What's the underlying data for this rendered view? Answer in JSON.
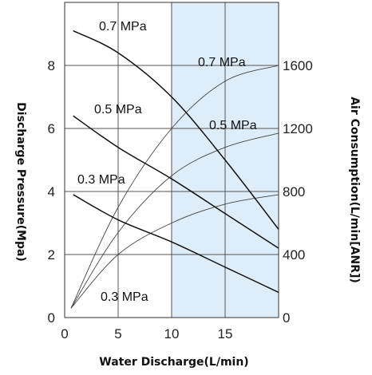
{
  "chart_data": {
    "type": "line",
    "xlabel": "Water Discharge(L/min)",
    "ylabel": "Discharge Pressure(Mpa)",
    "y2label": "Air Consumption(L/min[ANR])",
    "xlim": [
      0,
      20
    ],
    "ylim": [
      0,
      10
    ],
    "y2lim": [
      0,
      2000
    ],
    "x_ticks": [
      "0",
      "5",
      "10",
      "15"
    ],
    "y_ticks": [
      "0",
      "2",
      "4",
      "6",
      "8"
    ],
    "y2_ticks": [
      "0",
      "400",
      "800",
      "1200",
      "1600"
    ],
    "highlight_region": {
      "x_from": 10,
      "x_to": 20,
      "color": "#ddeefa"
    },
    "grid": true,
    "discharge_pressure_series": [
      {
        "name": "0.7 MPa",
        "x": [
          0,
          5,
          10,
          15,
          20
        ],
        "y": [
          9.1,
          8.4,
          7.0,
          5.0,
          2.8
        ]
      },
      {
        "name": "0.5 MPa",
        "x": [
          0,
          5,
          10,
          15,
          20
        ],
        "y": [
          6.4,
          5.4,
          4.4,
          3.3,
          2.2
        ]
      },
      {
        "name": "0.3 MPa",
        "x": [
          0,
          5,
          10,
          15,
          20
        ],
        "y": [
          3.9,
          3.1,
          2.4,
          1.6,
          0.8
        ]
      }
    ],
    "air_consumption_series": [
      {
        "name": "0.7 MPa",
        "x": [
          0,
          5,
          10,
          15,
          20
        ],
        "y": [
          60,
          700,
          1200,
          1500,
          1600
        ]
      },
      {
        "name": "0.5 MPa",
        "x": [
          0,
          5,
          10,
          15,
          20
        ],
        "y": [
          60,
          540,
          900,
          1080,
          1170
        ]
      },
      {
        "name": "0.3 MPa",
        "x": [
          0,
          5,
          10,
          15,
          20
        ],
        "y": [
          60,
          400,
          600,
          720,
          780
        ]
      }
    ],
    "labels": {
      "p07": "0.7 MPa",
      "p05": "0.5 MPa",
      "p03": "0.3 MPa",
      "a07": "0.7 MPa",
      "a05": "0.5 MPa",
      "a03": "0.3 MPa"
    }
  }
}
